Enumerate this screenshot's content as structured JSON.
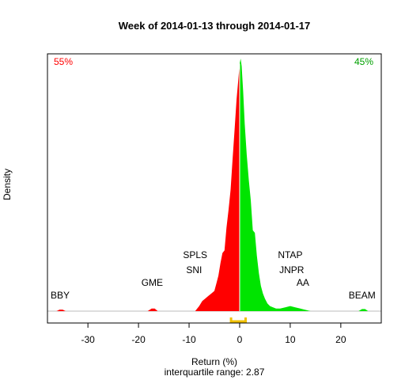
{
  "chart_data": {
    "type": "area",
    "title": "Week of 2014-01-13 through 2014-01-17",
    "xlabel": "Return (%)",
    "ylabel": "Density",
    "subtitle": "interquartile range: 2.87",
    "xlim": [
      -38,
      28
    ],
    "ylim": [
      0,
      1
    ],
    "xticks": [
      -30,
      -20,
      -10,
      0,
      10,
      20
    ],
    "yaxis_ticks_shown": false,
    "grid": false,
    "split_at": 0,
    "negative_share": "55%",
    "positive_share": "45%",
    "colors": {
      "negative": "#ff0000",
      "positive": "#00e400",
      "iqr_bracket": "#f0c000",
      "baseline": "#bdbdbd"
    },
    "iqr": [
      -1.7,
      1.17
    ],
    "density_curve": {
      "x": [
        -36.2,
        -35.6,
        -35.0,
        -34.4,
        -18.2,
        -17.4,
        -16.8,
        -16.2,
        -8.8,
        -8.0,
        -7.4,
        -6.8,
        -6.2,
        -5.6,
        -5.0,
        -4.6,
        -4.2,
        -3.8,
        -3.4,
        -3.0,
        -2.6,
        -2.2,
        -1.8,
        -1.4,
        -1.0,
        -0.6,
        -0.3,
        0,
        0.2,
        0.4,
        0.7,
        1.0,
        1.4,
        1.8,
        2.2,
        2.6,
        3.0,
        3.4,
        3.8,
        4.2,
        4.6,
        5.0,
        5.5,
        6.0,
        6.6,
        7.2,
        8.0,
        9.0,
        10.0,
        11.0,
        12.0,
        13.0,
        14.0,
        23.5,
        24.2,
        24.8,
        25.4
      ],
      "y": [
        0,
        0.006,
        0.006,
        0,
        0,
        0.01,
        0.01,
        0,
        0,
        0.02,
        0.04,
        0.05,
        0.06,
        0.07,
        0.08,
        0.11,
        0.14,
        0.19,
        0.23,
        0.24,
        0.33,
        0.4,
        0.48,
        0.6,
        0.72,
        0.84,
        0.91,
        0.98,
        1.0,
        0.97,
        0.87,
        0.74,
        0.62,
        0.52,
        0.44,
        0.32,
        0.31,
        0.22,
        0.15,
        0.1,
        0.07,
        0.05,
        0.03,
        0.02,
        0.015,
        0.01,
        0.01,
        0.015,
        0.02,
        0.015,
        0.01,
        0.005,
        0,
        0,
        0.008,
        0.008,
        0
      ]
    },
    "annotations": [
      {
        "text": "BBY",
        "x": -35.5,
        "y": 0.05
      },
      {
        "text": "GME",
        "x": -17.3,
        "y": 0.1
      },
      {
        "text": "SNI",
        "x": -9.0,
        "y": 0.15
      },
      {
        "text": "SPLS",
        "x": -8.8,
        "y": 0.21
      },
      {
        "text": "NTAP",
        "x": 10.0,
        "y": 0.21
      },
      {
        "text": "JNPR",
        "x": 10.3,
        "y": 0.15
      },
      {
        "text": "AA",
        "x": 12.5,
        "y": 0.1
      },
      {
        "text": "BEAM",
        "x": 24.2,
        "y": 0.05
      }
    ]
  }
}
